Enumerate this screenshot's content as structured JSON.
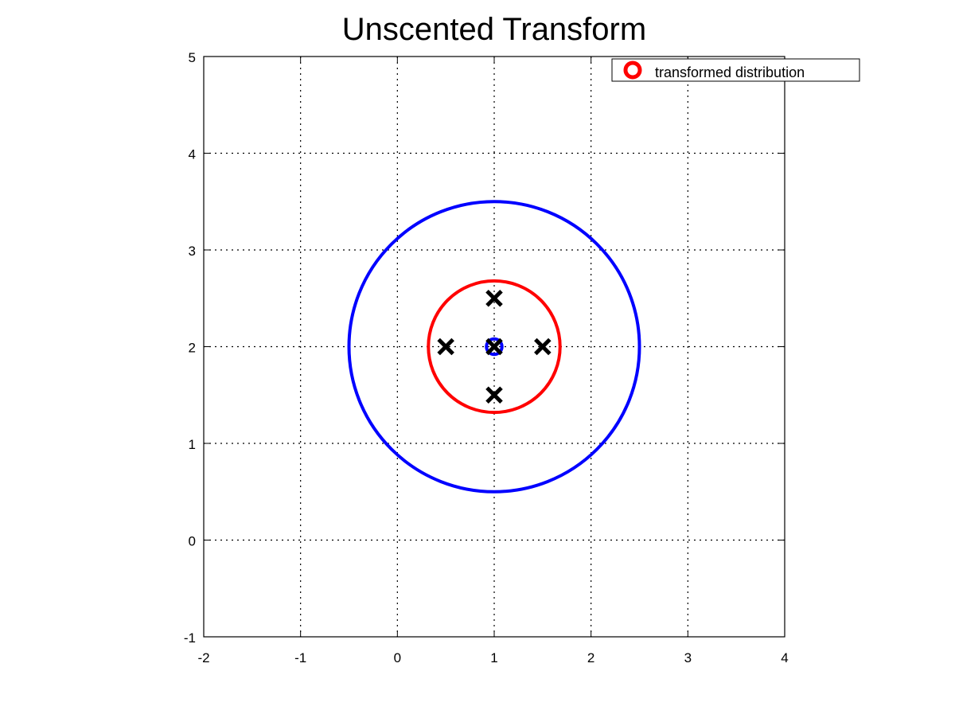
{
  "chart_data": {
    "type": "scatter",
    "title": "Unscented Transform",
    "xlabel": "",
    "ylabel": "",
    "xlim": [
      -2,
      4
    ],
    "ylim": [
      -1,
      5
    ],
    "xticks": [
      -2,
      -1,
      0,
      1,
      2,
      3,
      4
    ],
    "yticks": [
      -1,
      0,
      1,
      2,
      3,
      4,
      5
    ],
    "xtick_labels": [
      "-2",
      "-1",
      "0",
      "1",
      "2",
      "3",
      "4"
    ],
    "ytick_labels": [
      "-1",
      "0",
      "1",
      "2",
      "3",
      "4",
      "5"
    ],
    "grid": true,
    "legend": {
      "placement": "top-right",
      "entries": [
        {
          "label": "transformed distribution",
          "marker": "circle",
          "color": "#ff0000"
        }
      ]
    },
    "series": [
      {
        "kind": "ellipse",
        "color": "#0000ff",
        "center": [
          1,
          2
        ],
        "radius": [
          1.5,
          1.5
        ]
      },
      {
        "kind": "ellipse",
        "color": "#ff0000",
        "center": [
          1,
          2
        ],
        "radius": [
          0.68,
          0.68
        ]
      },
      {
        "kind": "ellipse",
        "color": "#0000ff",
        "center": [
          1,
          2
        ],
        "radius": [
          0.08,
          0.08
        ]
      },
      {
        "kind": "points",
        "marker": "x",
        "color": "#000000",
        "x": [
          1,
          1,
          1,
          0.5,
          1.5
        ],
        "y": [
          2,
          2.5,
          1.5,
          2,
          2
        ]
      }
    ]
  }
}
